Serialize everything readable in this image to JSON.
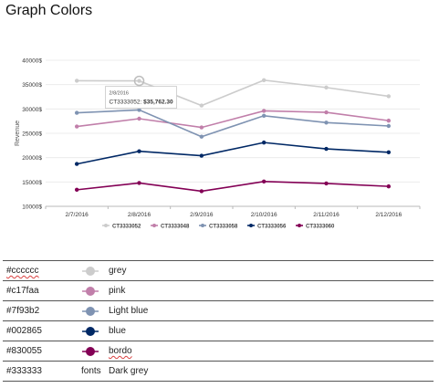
{
  "page": {
    "title": "Graph Colors"
  },
  "chart_data": {
    "type": "line",
    "categories": [
      "2/7/2016",
      "2/8/2016",
      "2/9/2016",
      "2/10/2016",
      "2/11/2016",
      "2/12/2016"
    ],
    "ylabel": "Revenue",
    "xlabel": "",
    "ylim": [
      10000,
      40000
    ],
    "yticks": [
      "10000$",
      "15000$",
      "20000$",
      "25000$",
      "30000$",
      "35000$",
      "40000$"
    ],
    "ytick_values": [
      10000,
      15000,
      20000,
      25000,
      30000,
      35000,
      40000
    ],
    "grid": "horizontal",
    "legend": "bottom",
    "series": [
      {
        "name": "CT3333052",
        "color": "#cccccc",
        "values": [
          35800,
          35762.3,
          30700,
          35900,
          34400,
          32600
        ]
      },
      {
        "name": "CT3333048",
        "color": "#c17faa",
        "values": [
          26400,
          28000,
          26200,
          29600,
          29300,
          27600
        ]
      },
      {
        "name": "CT3333058",
        "color": "#7f93b2",
        "values": [
          29200,
          29800,
          24300,
          28600,
          27200,
          26500
        ]
      },
      {
        "name": "CT3333056",
        "color": "#002865",
        "values": [
          18700,
          21300,
          20400,
          23100,
          21800,
          21100
        ]
      },
      {
        "name": "CT3333060",
        "color": "#830055",
        "values": [
          13400,
          14800,
          13100,
          15100,
          14700,
          14100
        ]
      }
    ],
    "tooltip": {
      "date": "2/8/2016",
      "series": "CT3333052",
      "value": "$35,762.30",
      "category_index": 1
    }
  },
  "color_table": [
    {
      "hex": "#cccccc",
      "usage": "",
      "name": "grey",
      "color": "#cccccc",
      "hex_misspelled": true,
      "name_misspelled": false
    },
    {
      "hex": "#c17faa",
      "usage": "",
      "name": "pink",
      "color": "#c17faa",
      "hex_misspelled": false,
      "name_misspelled": false
    },
    {
      "hex": "#7f93b2",
      "usage": "",
      "name": "Light blue",
      "color": "#7f93b2",
      "hex_misspelled": false,
      "name_misspelled": false
    },
    {
      "hex": "#002865",
      "usage": "",
      "name": "blue",
      "color": "#002865",
      "hex_misspelled": false,
      "name_misspelled": false
    },
    {
      "hex": "#830055",
      "usage": "",
      "name": "bordo",
      "color": "#830055",
      "hex_misspelled": false,
      "name_misspelled": true
    },
    {
      "hex": "#333333",
      "usage": "fonts",
      "name": "Dark grey",
      "color": "",
      "hex_misspelled": false,
      "name_misspelled": false
    }
  ]
}
